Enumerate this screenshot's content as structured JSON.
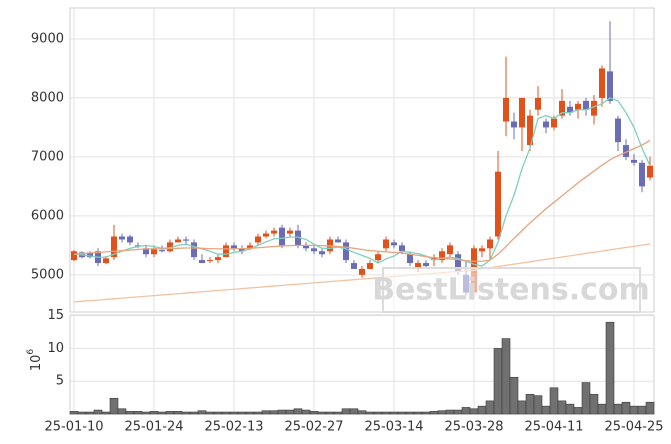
{
  "chart_data": {
    "type": "candlestick",
    "categories": [
      "25-01-10",
      null,
      null,
      null,
      null,
      null,
      null,
      null,
      null,
      null,
      "25-01-24",
      null,
      null,
      null,
      null,
      null,
      null,
      null,
      null,
      null,
      "25-02-13",
      null,
      null,
      null,
      null,
      null,
      null,
      null,
      null,
      null,
      "25-02-27",
      null,
      null,
      null,
      null,
      null,
      null,
      null,
      null,
      null,
      "25-03-14",
      null,
      null,
      null,
      null,
      null,
      null,
      null,
      null,
      null,
      "25-03-28",
      null,
      null,
      null,
      null,
      null,
      null,
      null,
      null,
      null,
      "25-04-11",
      null,
      null,
      null,
      null,
      null,
      null,
      null,
      null,
      null,
      "25-04-25",
      null,
      null
    ],
    "open": [
      5250,
      5380,
      5380,
      5400,
      5200,
      5300,
      5650,
      5650,
      5500,
      5450,
      5350,
      5420,
      5400,
      5550,
      5600,
      5550,
      5250,
      5250,
      5250,
      5300,
      5500,
      5450,
      5450,
      5550,
      5650,
      5700,
      5800,
      5700,
      5750,
      5500,
      5450,
      5400,
      5400,
      5600,
      5550,
      5200,
      5000,
      5100,
      5250,
      5450,
      5550,
      5500,
      5350,
      5100,
      5200,
      5250,
      5250,
      5350,
      5350,
      5000,
      4700,
      5400,
      5450,
      5650,
      7600,
      7600,
      7500,
      7200,
      7800,
      7600,
      7500,
      7700,
      7850,
      7800,
      7950,
      7700,
      8000,
      8450,
      7650,
      7200,
      6950,
      6900,
      6650
    ],
    "high": [
      5420,
      5400,
      5400,
      5450,
      5320,
      5850,
      5700,
      5680,
      5550,
      5500,
      5500,
      5500,
      5600,
      5650,
      5650,
      5600,
      5350,
      5300,
      5350,
      5550,
      5550,
      5500,
      5550,
      5700,
      5750,
      5800,
      5850,
      5800,
      5850,
      5550,
      5500,
      5450,
      5650,
      5650,
      5600,
      5250,
      5150,
      5250,
      5400,
      5650,
      5600,
      5550,
      5400,
      5250,
      5250,
      5350,
      5450,
      5550,
      5400,
      5250,
      5500,
      5500,
      5650,
      7100,
      8700,
      7750,
      8000,
      7800,
      8200,
      7650,
      7700,
      8150,
      7950,
      7950,
      8000,
      8050,
      8550,
      9300,
      7700,
      7300,
      7050,
      6950,
      7000
    ],
    "low": [
      5230,
      5280,
      5280,
      5150,
      5180,
      5250,
      5550,
      5500,
      5450,
      5300,
      5300,
      5380,
      5380,
      5550,
      5500,
      5250,
      5200,
      5200,
      5200,
      5300,
      5400,
      5350,
      5420,
      5500,
      5620,
      5650,
      5450,
      5650,
      5450,
      5400,
      5350,
      5300,
      5350,
      5550,
      5200,
      5100,
      4950,
      5100,
      5200,
      5400,
      5450,
      5350,
      5150,
      5050,
      5100,
      5150,
      5200,
      5300,
      5000,
      4650,
      4650,
      5300,
      5250,
      5600,
      7350,
      7300,
      7100,
      7100,
      7700,
      7400,
      7450,
      7650,
      7700,
      7650,
      7700,
      7550,
      7850,
      7900,
      7100,
      6950,
      6850,
      6400,
      6600
    ],
    "close": [
      5400,
      5300,
      5300,
      5200,
      5280,
      5650,
      5600,
      5550,
      5480,
      5350,
      5450,
      5400,
      5550,
      5600,
      5580,
      5300,
      5200,
      5250,
      5300,
      5500,
      5450,
      5400,
      5500,
      5650,
      5700,
      5750,
      5500,
      5750,
      5500,
      5450,
      5400,
      5350,
      5600,
      5550,
      5250,
      5100,
      5100,
      5200,
      5350,
      5600,
      5500,
      5400,
      5200,
      5200,
      5150,
      5300,
      5400,
      5500,
      5050,
      4700,
      5450,
      5450,
      5600,
      6750,
      8000,
      7500,
      8000,
      7700,
      8000,
      7500,
      7650,
      7950,
      7750,
      7900,
      7800,
      7950,
      8500,
      7950,
      7250,
      7000,
      6900,
      6500,
      6850
    ],
    "up_color": "#e2501c",
    "down_color": "#6a6cb4",
    "series": [
      {
        "color": "#7fd0bd",
        "values": [
          5350,
          5340,
          5320,
          5300,
          5300,
          5350,
          5400,
          5450,
          5480,
          5500,
          5480,
          5450,
          5460,
          5500,
          5520,
          5480,
          5440,
          5400,
          5350,
          5350,
          5380,
          5400,
          5440,
          5500,
          5560,
          5610,
          5620,
          5640,
          5640,
          5600,
          5520,
          5450,
          5450,
          5470,
          5440,
          5380,
          5330,
          5280,
          5200,
          5270,
          5320,
          5400,
          5380,
          5360,
          5320,
          5250,
          5280,
          5300,
          5280,
          5230,
          5180,
          5150,
          5250,
          5550,
          6000,
          6350,
          6800,
          7150,
          7650,
          7700,
          7650,
          7750,
          7750,
          7800,
          7800,
          7850,
          7900,
          8000,
          7950,
          7750,
          7500,
          7150,
          6850
        ]
      },
      {
        "color": "#e8a47e",
        "values": [
          5350,
          5360,
          5370,
          5380,
          5390,
          5400,
          5410,
          5420,
          5430,
          5440,
          5440,
          5440,
          5445,
          5450,
          5455,
          5455,
          5450,
          5445,
          5440,
          5440,
          5440,
          5445,
          5450,
          5460,
          5470,
          5480,
          5490,
          5495,
          5500,
          5500,
          5500,
          5495,
          5490,
          5480,
          5470,
          5450,
          5430,
          5410,
          5400,
          5390,
          5380,
          5370,
          5350,
          5330,
          5310,
          5290,
          5280,
          5270,
          5260,
          5240,
          5230,
          5230,
          5250,
          5350,
          5480,
          5620,
          5750,
          5880,
          6000,
          6120,
          6230,
          6340,
          6450,
          6560,
          6660,
          6760,
          6860,
          6950,
          7020,
          7080,
          7140,
          7200,
          7280
        ]
      },
      {
        "color": "#f1c3a3",
        "values": [
          4540,
          4551,
          4562,
          4572,
          4583,
          4594,
          4605,
          4616,
          4626,
          4637,
          4648,
          4659,
          4670,
          4680,
          4691,
          4702,
          4713,
          4724,
          4734,
          4745,
          4756,
          4767,
          4778,
          4788,
          4799,
          4810,
          4821,
          4832,
          4842,
          4853,
          4864,
          4875,
          4886,
          4896,
          4907,
          4918,
          4929,
          4940,
          4950,
          4961,
          4972,
          4983,
          4994,
          5004,
          5015,
          5026,
          5037,
          5048,
          5058,
          5069,
          5080,
          5100,
          5120,
          5141,
          5161,
          5181,
          5201,
          5221,
          5242,
          5262,
          5282,
          5302,
          5322,
          5343,
          5363,
          5383,
          5403,
          5423,
          5444,
          5464,
          5484,
          5504,
          5524
        ]
      }
    ],
    "ylim": [
      4370,
      9525
    ],
    "yticks": [
      5000,
      6000,
      7000,
      8000,
      9000
    ],
    "grid": true,
    "volume": {
      "type": "bar",
      "color": "#707070",
      "unit_base": "10",
      "unit_exponent": "6",
      "values": [
        0.4,
        0.3,
        0.3,
        0.6,
        0.3,
        2.4,
        0.8,
        0.4,
        0.4,
        0.3,
        0.4,
        0.3,
        0.4,
        0.4,
        0.3,
        0.3,
        0.5,
        0.3,
        0.3,
        0.3,
        0.3,
        0.3,
        0.3,
        0.3,
        0.5,
        0.5,
        0.6,
        0.6,
        0.8,
        0.6,
        0.4,
        0.3,
        0.3,
        0.3,
        0.8,
        0.8,
        0.5,
        0.3,
        0.3,
        0.3,
        0.3,
        0.3,
        0.3,
        0.3,
        0.3,
        0.4,
        0.5,
        0.6,
        0.6,
        1.0,
        0.8,
        1.2,
        2.0,
        10.0,
        11.5,
        5.6,
        2.0,
        3.0,
        2.8,
        1.2,
        4.0,
        2.0,
        1.5,
        1.0,
        4.8,
        3.0,
        1.5,
        14.0,
        1.5,
        1.8,
        1.2,
        1.2,
        1.8
      ],
      "ylim": [
        0,
        15.1
      ],
      "yticks": [
        5,
        10,
        15
      ]
    },
    "watermark": "BestListens.com"
  }
}
